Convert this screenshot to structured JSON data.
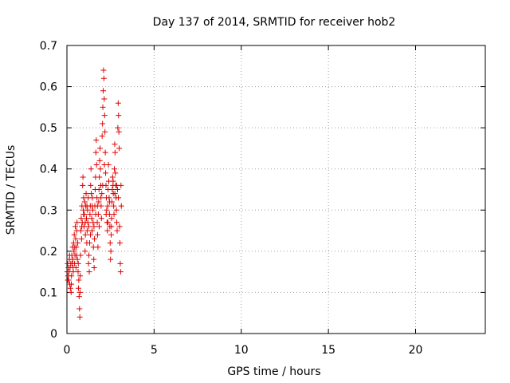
{
  "chart_data": {
    "type": "scatter",
    "title": "Day 137 of 2014, SRMTID for receiver hob2",
    "xlabel": "GPS time / hours",
    "ylabel": "SRMTID / TECUs",
    "xlim": [
      0,
      24
    ],
    "ylim": [
      0,
      0.7
    ],
    "x_ticks": [
      0,
      5,
      10,
      15,
      20
    ],
    "x_tick_labels": [
      "0",
      "5",
      "10",
      "15",
      "20"
    ],
    "y_ticks": [
      0,
      0.1,
      0.2,
      0.3,
      0.4,
      0.5,
      0.6,
      0.7
    ],
    "y_tick_labels": [
      "0",
      "0.1",
      "0.2",
      "0.3",
      "0.4",
      "0.5",
      "0.6",
      "0.7"
    ],
    "grid": true,
    "marker": "plus",
    "series_color": "#e00000",
    "points": [
      [
        0.02,
        0.15
      ],
      [
        0.04,
        0.17
      ],
      [
        0.06,
        0.14
      ],
      [
        0.08,
        0.16
      ],
      [
        0.1,
        0.13
      ],
      [
        0.12,
        0.15
      ],
      [
        0.14,
        0.18
      ],
      [
        0.16,
        0.12
      ],
      [
        0.18,
        0.16
      ],
      [
        0.2,
        0.11
      ],
      [
        0.22,
        0.17
      ],
      [
        0.24,
        0.1
      ],
      [
        0.26,
        0.14
      ],
      [
        0.28,
        0.19
      ],
      [
        0.3,
        0.17
      ],
      [
        0.32,
        0.21
      ],
      [
        0.34,
        0.18
      ],
      [
        0.36,
        0.15
      ],
      [
        0.38,
        0.22
      ],
      [
        0.4,
        0.2
      ],
      [
        0.42,
        0.24
      ],
      [
        0.44,
        0.17
      ],
      [
        0.46,
        0.19
      ],
      [
        0.48,
        0.26
      ],
      [
        0.5,
        0.23
      ],
      [
        0.52,
        0.16
      ],
      [
        0.54,
        0.21
      ],
      [
        0.56,
        0.25
      ],
      [
        0.58,
        0.27
      ],
      [
        0.6,
        0.18
      ],
      [
        0.62,
        0.22
      ],
      [
        0.64,
        0.15
      ],
      [
        0.66,
        0.11
      ],
      [
        0.68,
        0.13
      ],
      [
        0.7,
        0.09
      ],
      [
        0.72,
        0.06
      ],
      [
        0.74,
        0.04
      ],
      [
        0.76,
        0.14
      ],
      [
        0.78,
        0.19
      ],
      [
        0.8,
        0.25
      ],
      [
        0.82,
        0.28
      ],
      [
        0.84,
        0.23
      ],
      [
        0.86,
        0.31
      ],
      [
        0.88,
        0.27
      ],
      [
        0.9,
        0.36
      ],
      [
        0.92,
        0.38
      ],
      [
        0.94,
        0.3
      ],
      [
        0.96,
        0.33
      ],
      [
        0.98,
        0.26
      ],
      [
        1.0,
        0.29
      ],
      [
        1.02,
        0.32
      ],
      [
        1.04,
        0.2
      ],
      [
        1.06,
        0.24
      ],
      [
        1.08,
        0.31
      ],
      [
        1.1,
        0.34
      ],
      [
        1.12,
        0.28
      ],
      [
        1.14,
        0.22
      ],
      [
        1.16,
        0.25
      ],
      [
        1.18,
        0.3
      ],
      [
        1.2,
        0.27
      ],
      [
        1.22,
        0.33
      ],
      [
        1.24,
        0.17
      ],
      [
        1.26,
        0.19
      ],
      [
        1.28,
        0.15
      ],
      [
        1.3,
        0.22
      ],
      [
        1.32,
        0.29
      ],
      [
        1.34,
        0.31
      ],
      [
        1.36,
        0.36
      ],
      [
        1.38,
        0.4
      ],
      [
        1.4,
        0.34
      ],
      [
        1.42,
        0.28
      ],
      [
        1.44,
        0.25
      ],
      [
        1.46,
        0.33
      ],
      [
        1.48,
        0.3
      ],
      [
        1.5,
        0.27
      ],
      [
        1.52,
        0.21
      ],
      [
        1.54,
        0.18
      ],
      [
        1.56,
        0.16
      ],
      [
        1.58,
        0.23
      ],
      [
        1.6,
        0.31
      ],
      [
        1.62,
        0.35
      ],
      [
        1.64,
        0.38
      ],
      [
        1.66,
        0.44
      ],
      [
        1.68,
        0.47
      ],
      [
        1.7,
        0.41
      ],
      [
        1.72,
        0.33
      ],
      [
        1.74,
        0.27
      ],
      [
        1.76,
        0.24
      ],
      [
        1.78,
        0.21
      ],
      [
        1.8,
        0.29
      ],
      [
        1.82,
        0.32
      ],
      [
        1.84,
        0.35
      ],
      [
        1.86,
        0.38
      ],
      [
        1.88,
        0.42
      ],
      [
        1.9,
        0.45
      ],
      [
        1.92,
        0.4
      ],
      [
        1.94,
        0.36
      ],
      [
        1.96,
        0.31
      ],
      [
        1.98,
        0.28
      ],
      [
        2.0,
        0.34
      ],
      [
        2.02,
        0.48
      ],
      [
        2.04,
        0.51
      ],
      [
        2.06,
        0.55
      ],
      [
        2.08,
        0.59
      ],
      [
        2.1,
        0.64
      ],
      [
        2.12,
        0.62
      ],
      [
        2.14,
        0.57
      ],
      [
        2.16,
        0.53
      ],
      [
        2.18,
        0.49
      ],
      [
        2.2,
        0.44
      ],
      [
        2.22,
        0.39
      ],
      [
        2.24,
        0.36
      ],
      [
        2.26,
        0.33
      ],
      [
        2.28,
        0.3
      ],
      [
        2.3,
        0.27
      ],
      [
        2.32,
        0.25
      ],
      [
        2.34,
        0.31
      ],
      [
        2.36,
        0.35
      ],
      [
        2.38,
        0.41
      ],
      [
        2.4,
        0.37
      ],
      [
        2.42,
        0.33
      ],
      [
        2.44,
        0.29
      ],
      [
        2.46,
        0.26
      ],
      [
        2.48,
        0.22
      ],
      [
        2.5,
        0.18
      ],
      [
        2.52,
        0.2
      ],
      [
        2.54,
        0.24
      ],
      [
        2.56,
        0.28
      ],
      [
        2.58,
        0.32
      ],
      [
        2.6,
        0.35
      ],
      [
        2.62,
        0.38
      ],
      [
        2.64,
        0.36
      ],
      [
        2.66,
        0.34
      ],
      [
        2.68,
        0.31
      ],
      [
        2.7,
        0.29
      ],
      [
        2.72,
        0.4
      ],
      [
        2.74,
        0.46
      ],
      [
        2.76,
        0.44
      ],
      [
        2.78,
        0.39
      ],
      [
        2.8,
        0.36
      ],
      [
        2.82,
        0.33
      ],
      [
        2.84,
        0.3
      ],
      [
        2.86,
        0.27
      ],
      [
        2.88,
        0.25
      ],
      [
        2.9,
        0.35
      ],
      [
        2.92,
        0.5
      ],
      [
        2.94,
        0.56
      ],
      [
        2.96,
        0.53
      ],
      [
        2.98,
        0.49
      ],
      [
        3.0,
        0.45
      ],
      [
        3.02,
        0.26
      ],
      [
        3.04,
        0.22
      ],
      [
        3.06,
        0.17
      ],
      [
        3.08,
        0.15
      ],
      [
        3.1,
        0.36
      ],
      [
        3.12,
        0.31
      ],
      [
        0.05,
        0.13
      ],
      [
        0.15,
        0.19
      ],
      [
        0.25,
        0.12
      ],
      [
        0.35,
        0.16
      ],
      [
        0.45,
        0.21
      ],
      [
        0.55,
        0.19
      ],
      [
        0.65,
        0.17
      ],
      [
        0.75,
        0.1
      ],
      [
        0.85,
        0.26
      ],
      [
        0.95,
        0.29
      ],
      [
        1.05,
        0.27
      ],
      [
        1.15,
        0.31
      ],
      [
        1.25,
        0.26
      ],
      [
        1.35,
        0.24
      ],
      [
        1.45,
        0.31
      ],
      [
        1.55,
        0.26
      ],
      [
        1.65,
        0.29
      ],
      [
        1.75,
        0.31
      ],
      [
        1.85,
        0.26
      ],
      [
        1.95,
        0.33
      ],
      [
        2.05,
        0.36
      ],
      [
        2.15,
        0.41
      ],
      [
        2.25,
        0.29
      ],
      [
        2.35,
        0.27
      ],
      [
        2.45,
        0.32
      ],
      [
        2.55,
        0.26
      ],
      [
        2.65,
        0.37
      ],
      [
        2.75,
        0.34
      ],
      [
        2.85,
        0.36
      ],
      [
        2.95,
        0.33
      ]
    ]
  }
}
